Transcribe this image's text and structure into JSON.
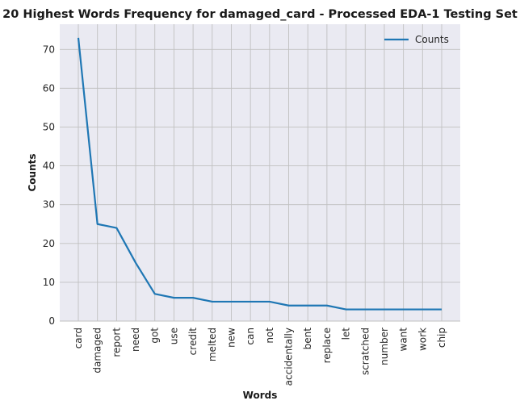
{
  "chart_data": {
    "type": "line",
    "title": "20 Highest Words Frequency for damaged_card - Processed EDA-1 Testing Set",
    "xlabel": "Words",
    "ylabel": "Counts",
    "categories": [
      "card",
      "damaged",
      "report",
      "need",
      "got",
      "use",
      "credit",
      "melted",
      "new",
      "can",
      "not",
      "accidentally",
      "bent",
      "replace",
      "let",
      "scratched",
      "number",
      "want",
      "work",
      "chip"
    ],
    "series": [
      {
        "name": "Counts",
        "color": "#1f77b4",
        "values": [
          73,
          25,
          24,
          15,
          7,
          6,
          6,
          5,
          5,
          5,
          5,
          4,
          4,
          4,
          3,
          3,
          3,
          3,
          3,
          3
        ]
      }
    ],
    "yticks": [
      0,
      10,
      20,
      30,
      40,
      50,
      60,
      70
    ],
    "ylim": [
      0,
      76.5
    ],
    "grid": true,
    "legend_position": "top-right",
    "colors": {
      "plot_bg": "#eaeaf2",
      "grid": "#c0c0c0",
      "line": "#1f77b4"
    }
  }
}
